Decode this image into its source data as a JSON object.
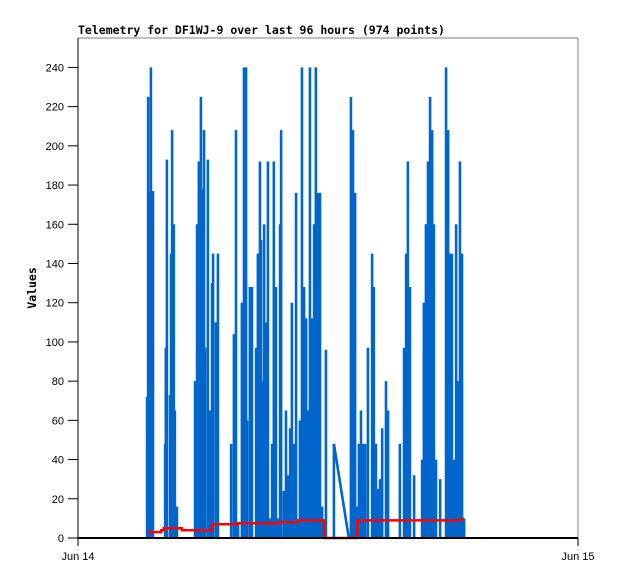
{
  "chart_data": {
    "type": "line",
    "title": "Telemetry for DF1WJ-9 over last 96 hours (974 points)",
    "ylabel": "Values",
    "xlabel": "",
    "ylim": [
      0,
      255
    ],
    "yticks": [
      0,
      20,
      40,
      60,
      80,
      100,
      120,
      140,
      160,
      180,
      200,
      220,
      240
    ],
    "xlim": [
      "Jun 14 00:00",
      "Jun 15 00:00"
    ],
    "xticks": [
      "Jun 14",
      "Jun 15"
    ],
    "grid": false,
    "colors": {
      "blue": "#0066cc",
      "red": "#ff0000",
      "axis": "#000000",
      "frame": "#808080"
    },
    "series": [
      {
        "color": "#0066cc",
        "points": [
          [
            "03:19",
            72
          ],
          [
            "03:22",
            225
          ],
          [
            "03:24",
            145
          ],
          [
            "03:27",
            177
          ],
          [
            "03:30",
            240
          ],
          [
            "03:36",
            177
          ],
          [
            "04:11",
            48
          ],
          [
            "04:13",
            97
          ],
          [
            "04:16",
            193
          ],
          [
            "04:25",
            73
          ],
          [
            "04:28",
            145
          ],
          [
            "04:31",
            208
          ],
          [
            "04:36",
            160
          ],
          [
            "04:39",
            65
          ],
          [
            "04:45",
            16
          ],
          [
            "05:37",
            80
          ],
          [
            "05:43",
            160
          ],
          [
            "05:48",
            192
          ],
          [
            "05:54",
            225
          ],
          [
            "05:57",
            40
          ],
          [
            "06:00",
            178
          ],
          [
            "06:03",
            208
          ],
          [
            "06:06",
            97
          ],
          [
            "06:14",
            193
          ],
          [
            "06:20",
            65
          ],
          [
            "06:26",
            130
          ],
          [
            "06:29",
            145
          ],
          [
            "06:37",
            110
          ],
          [
            "06:43",
            145
          ],
          [
            "07:21",
            48
          ],
          [
            "07:29",
            104
          ],
          [
            "07:35",
            208
          ],
          [
            "07:41",
            8
          ],
          [
            "07:52",
            120
          ],
          [
            "07:58",
            240
          ],
          [
            "08:04",
            240
          ],
          [
            "08:07",
            60
          ],
          [
            "08:15",
            128
          ],
          [
            "08:21",
            128
          ],
          [
            "08:33",
            97
          ],
          [
            "08:38",
            145
          ],
          [
            "08:44",
            192
          ],
          [
            "08:47",
            152
          ],
          [
            "08:50",
            80
          ],
          [
            "08:56",
            160
          ],
          [
            "09:01",
            110
          ],
          [
            "09:07",
            192
          ],
          [
            "09:13",
            10
          ],
          [
            "09:19",
            48
          ],
          [
            "09:24",
            192
          ],
          [
            "09:30",
            128
          ],
          [
            "09:36",
            10
          ],
          [
            "09:42",
            160
          ],
          [
            "09:45",
            208
          ],
          [
            "09:53",
            24
          ],
          [
            "09:59",
            65
          ],
          [
            "10:05",
            32
          ],
          [
            "10:11",
            56
          ],
          [
            "10:16",
            120
          ],
          [
            "10:22",
            48
          ],
          [
            "10:28",
            176
          ],
          [
            "10:34",
            8
          ],
          [
            "10:39",
            60
          ],
          [
            "10:45",
            240
          ],
          [
            "10:48",
            120
          ],
          [
            "10:51",
            128
          ],
          [
            "10:57",
            112
          ],
          [
            "11:02",
            65
          ],
          [
            "11:08",
            240
          ],
          [
            "11:14",
            112
          ],
          [
            "11:20",
            160
          ],
          [
            "11:25",
            240
          ],
          [
            "11:31",
            176
          ],
          [
            "11:37",
            176
          ],
          [
            "11:43",
            16
          ],
          [
            "11:54",
            96
          ],
          [
            "12:17",
            48
          ],
          [
            "13:00",
            0
          ],
          [
            "13:06",
            225
          ],
          [
            "13:12",
            208
          ],
          [
            "13:18",
            176
          ],
          [
            "13:24",
            16
          ],
          [
            "13:29",
            48
          ],
          [
            "13:35",
            65
          ],
          [
            "13:41",
            48
          ],
          [
            "13:47",
            48
          ],
          [
            "13:55",
            97
          ],
          [
            "14:07",
            145
          ],
          [
            "14:12",
            128
          ],
          [
            "14:18",
            48
          ],
          [
            "14:24",
            25
          ],
          [
            "14:30",
            30
          ],
          [
            "14:36",
            56
          ],
          [
            "14:47",
            80
          ],
          [
            "14:53",
            65
          ],
          [
            "15:27",
            48
          ],
          [
            "15:39",
            97
          ],
          [
            "15:45",
            145
          ],
          [
            "15:50",
            192
          ],
          [
            "15:56",
            128
          ],
          [
            "16:08",
            32
          ],
          [
            "16:31",
            40
          ],
          [
            "16:36",
            120
          ],
          [
            "16:42",
            160
          ],
          [
            "16:48",
            192
          ],
          [
            "16:54",
            225
          ],
          [
            "17:00",
            208
          ],
          [
            "17:05",
            160
          ],
          [
            "17:11",
            40
          ],
          [
            "17:23",
            30
          ],
          [
            "17:40",
            240
          ],
          [
            "17:46",
            208
          ],
          [
            "17:51",
            145
          ],
          [
            "17:57",
            145
          ],
          [
            "18:03",
            40
          ],
          [
            "18:09",
            160
          ],
          [
            "18:14",
            80
          ],
          [
            "18:20",
            192
          ],
          [
            "18:26",
            145
          ],
          [
            "18:32",
            10
          ]
        ]
      },
      {
        "color": "#ff0000",
        "points": [
          [
            "03:19",
            3
          ],
          [
            "04:00",
            3
          ],
          [
            "04:00",
            4
          ],
          [
            "04:07",
            4
          ],
          [
            "04:07",
            5
          ],
          [
            "04:59",
            5
          ],
          [
            "04:59",
            4
          ],
          [
            "06:26",
            4
          ],
          [
            "06:26",
            7
          ],
          [
            "07:41",
            7
          ],
          [
            "07:41",
            7.5
          ],
          [
            "09:36",
            7.5
          ],
          [
            "09:36",
            8
          ],
          [
            "10:34",
            8
          ],
          [
            "10:34",
            9
          ],
          [
            "11:48",
            9
          ],
          [
            "11:49",
            0
          ],
          [
            "13:24",
            0
          ],
          [
            "13:25",
            9
          ],
          [
            "18:20",
            9
          ],
          [
            "18:32",
            10
          ]
        ]
      }
    ]
  }
}
